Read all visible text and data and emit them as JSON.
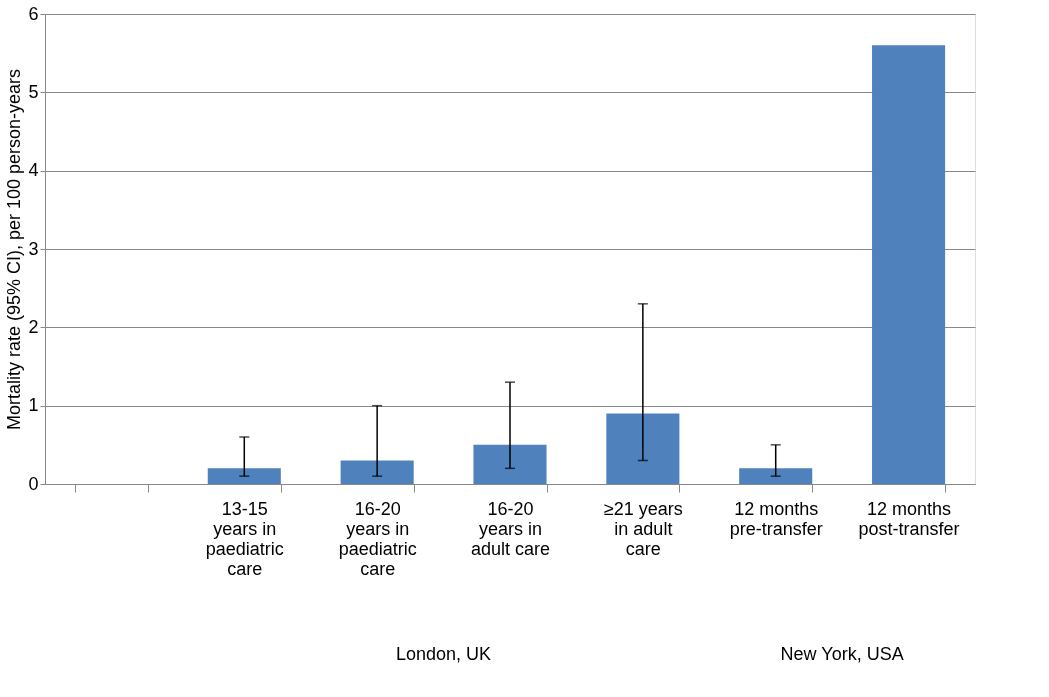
{
  "chart_data": {
    "type": "bar",
    "ylabel": "Mortality rate (95% CI), per 100 person-years",
    "categories": [
      null,
      "13-15 years in paediatric care",
      "16-20 years in paediatric care",
      "16-20 years in adult care",
      "≥21 years in adult care",
      "12 months pre-transfer",
      "12 months post-transfer"
    ],
    "series": [
      {
        "color": "#4f81bd",
        "values": [
          null,
          0.2,
          0.3,
          0.5,
          0.9,
          0.2,
          5.6
        ],
        "errors": [
          null,
          [
            0.1,
            0.6
          ],
          [
            0.1,
            1.0
          ],
          [
            0.2,
            1.3
          ],
          [
            0.3,
            2.3
          ],
          [
            0.1,
            0.5
          ],
          null
        ]
      }
    ],
    "ylim": [
      0,
      6
    ],
    "yticks": [
      0,
      1,
      2,
      3,
      4,
      5,
      6
    ],
    "grid": "y",
    "annotations": [
      "London, UK",
      "New York, USA"
    ]
  }
}
